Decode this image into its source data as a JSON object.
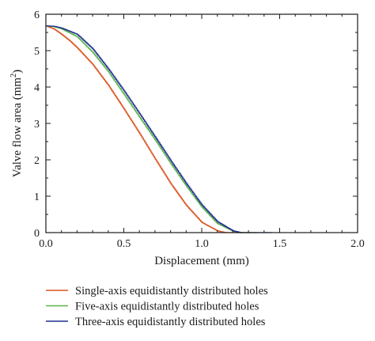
{
  "chart_data": {
    "type": "line",
    "xlabel": "Displacement (mm)",
    "ylabel_main": "Valve flow area (mm",
    "ylabel_sup": "2",
    "ylabel_close": ")",
    "xlim": [
      0.0,
      2.0
    ],
    "ylim": [
      0,
      6
    ],
    "xticks": [
      0.0,
      0.5,
      1.0,
      1.5,
      2.0
    ],
    "xtick_labels": [
      "0.0",
      "0.5",
      "1.0",
      "1.5",
      "2.0"
    ],
    "yticks": [
      0,
      1,
      2,
      3,
      4,
      5,
      6
    ],
    "ytick_labels": [
      "0",
      "1",
      "2",
      "3",
      "4",
      "5",
      "6"
    ],
    "grid": false,
    "legend_position": "bottom",
    "series": [
      {
        "name": "Single-axis equidistantly distributed holes",
        "color": "#d9541e",
        "x": [
          0.0,
          0.05,
          0.1,
          0.15,
          0.2,
          0.3,
          0.4,
          0.5,
          0.6,
          0.7,
          0.8,
          0.9,
          1.0,
          1.1,
          1.15,
          1.2,
          1.3
        ],
        "y": [
          5.68,
          5.6,
          5.45,
          5.28,
          5.08,
          4.62,
          4.05,
          3.4,
          2.73,
          2.03,
          1.35,
          0.75,
          0.28,
          0.05,
          0.0,
          0.0,
          0.0
        ]
      },
      {
        "name": "Five-axis equidistantly distributed holes",
        "color": "#5cb34a",
        "x": [
          0.0,
          0.05,
          0.1,
          0.2,
          0.3,
          0.4,
          0.5,
          0.6,
          0.7,
          0.8,
          0.9,
          1.0,
          1.1,
          1.2,
          1.25,
          1.3,
          1.35
        ],
        "y": [
          5.68,
          5.66,
          5.6,
          5.38,
          4.95,
          4.42,
          3.8,
          3.17,
          2.55,
          1.9,
          1.28,
          0.7,
          0.25,
          0.04,
          0.0,
          0.0,
          0.0
        ]
      },
      {
        "name": "Three-axis equidistantly distributed holes",
        "color": "#1f2f8f",
        "x": [
          0.0,
          0.05,
          0.1,
          0.2,
          0.3,
          0.4,
          0.5,
          0.6,
          0.7,
          0.8,
          0.9,
          1.0,
          1.1,
          1.2,
          1.25,
          1.3,
          1.45
        ],
        "y": [
          5.68,
          5.67,
          5.62,
          5.45,
          5.05,
          4.5,
          3.9,
          3.27,
          2.63,
          1.98,
          1.35,
          0.76,
          0.3,
          0.05,
          0.0,
          0.0,
          0.0
        ]
      }
    ]
  }
}
